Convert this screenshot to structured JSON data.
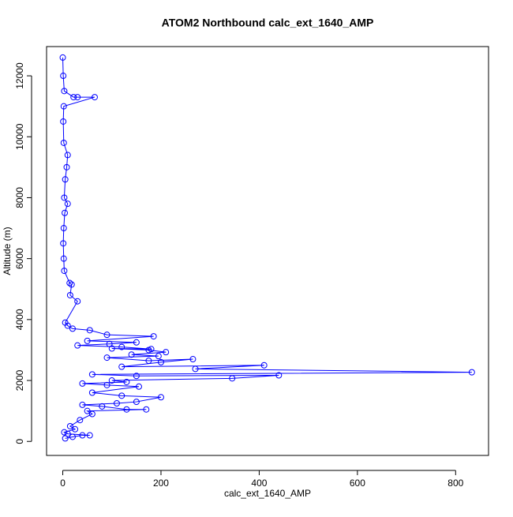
{
  "chart_data": {
    "type": "line",
    "title": "ATOM2 Northbound calc_ext_1640_AMP",
    "x_label": "calc_ext_1640_AMP",
    "y_label": "Altitude (m)",
    "color": "#0000ff",
    "markers": true,
    "x": [
      5,
      20,
      40,
      55,
      10,
      3,
      25,
      15,
      35,
      60,
      50,
      170,
      130,
      80,
      40,
      110,
      150,
      200,
      120,
      60,
      155,
      90,
      40,
      130,
      100,
      345,
      440,
      150,
      60,
      833,
      270,
      410,
      120,
      200,
      265,
      175,
      90,
      195,
      140,
      210,
      175,
      100,
      180,
      120,
      30,
      95,
      150,
      50,
      185,
      90,
      55,
      20,
      10,
      5,
      30,
      15,
      18,
      14,
      3,
      2,
      1,
      2,
      4,
      10,
      3,
      5,
      8,
      10,
      2,
      1,
      2,
      65,
      30,
      22,
      3,
      1,
      0
    ],
    "y": [
      100,
      150,
      200,
      200,
      250,
      300,
      400,
      500,
      700,
      900,
      1000,
      1050,
      1050,
      1150,
      1200,
      1250,
      1300,
      1450,
      1500,
      1600,
      1800,
      1850,
      1900,
      1950,
      2000,
      2070,
      2170,
      2150,
      2200,
      2270,
      2380,
      2500,
      2450,
      2600,
      2700,
      2650,
      2750,
      2800,
      2850,
      2930,
      3000,
      3050,
      3030,
      3100,
      3150,
      3200,
      3250,
      3300,
      3450,
      3500,
      3650,
      3700,
      3800,
      3900,
      4600,
      4800,
      5150,
      5200,
      5600,
      6000,
      6500,
      7000,
      7500,
      7800,
      8000,
      8600,
      9000,
      9400,
      9800,
      10500,
      11000,
      11300,
      11300,
      11300,
      11500,
      12000,
      12600
    ],
    "xlim": [
      -33,
      867
    ],
    "ylim": [
      -460,
      12960
    ],
    "xticks": [
      0,
      200,
      400,
      600,
      800
    ],
    "yticks": [
      0,
      2000,
      4000,
      6000,
      8000,
      10000,
      12000
    ]
  }
}
